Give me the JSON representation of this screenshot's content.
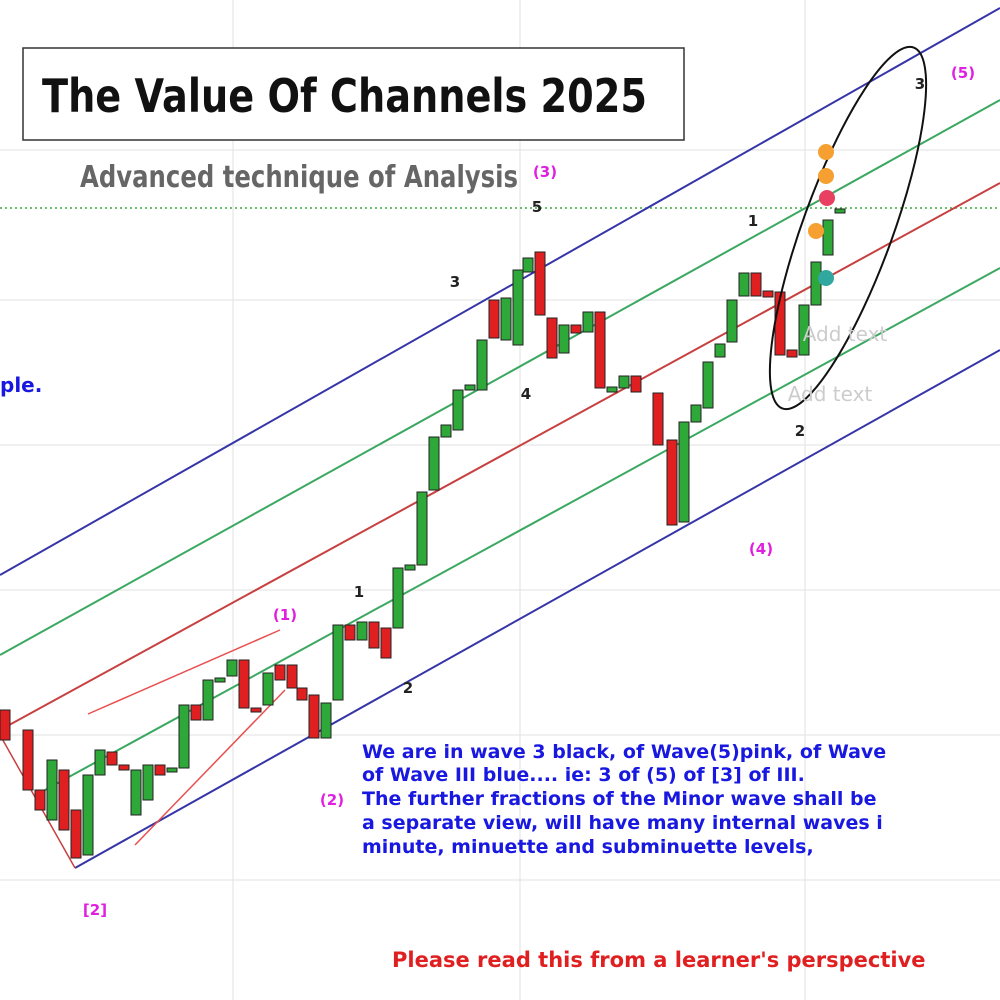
{
  "header": {
    "title": "The Value Of Channels 2025",
    "subtitle": "Advanced technique of Analysis"
  },
  "wave_labels": [
    "(3)",
    "5",
    "3",
    "4",
    "1",
    "2",
    "3",
    "(5)",
    "(4)",
    "(1)",
    "1",
    "2",
    "(2)",
    "[2]"
  ],
  "side_text": "ple.",
  "placeholders": [
    "Add text",
    "Add text"
  ],
  "annotation": {
    "lines": [
      "We are in wave 3 black, of Wave(5)pink, of Wave",
      "of Wave III blue.... ie: 3 of (5) of [3] of III.",
      "The further  fractions of the Minor wave shall be",
      "a separate view, will have  many internal waves i",
      "minute, minuette and subminuette levels,"
    ]
  },
  "footer": "Please read this from a learner's perspective"
}
